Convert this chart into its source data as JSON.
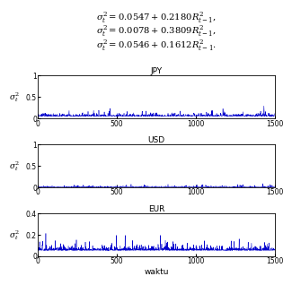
{
  "subplot_titles": [
    "JPY",
    "USD",
    "EUR"
  ],
  "ylabel": "$\\sigma_t^2$",
  "xlabel": "waktu",
  "n_points": 1500,
  "xlim": [
    0,
    1500
  ],
  "ylim_jpy": [
    0,
    1.0
  ],
  "ylim_usd": [
    0,
    1.0
  ],
  "ylim_eur": [
    0,
    0.4
  ],
  "yticks_jpy": [
    0,
    0.5,
    1
  ],
  "yticks_usd": [
    0,
    0.5,
    1
  ],
  "yticks_eur": [
    0,
    0.2,
    0.4
  ],
  "xticks": [
    0,
    500,
    1000,
    1500
  ],
  "line_color": "#0000cc",
  "bg_color": "#ffffff",
  "arch_a_jpy": 0.0547,
  "arch_b_jpy": 0.218,
  "arch_a_usd": 0.0078,
  "arch_b_usd": 0.3809,
  "arch_a_eur": 0.0546,
  "arch_b_eur": 0.1612,
  "eq1": "$\\sigma_t^2 = 0.0547 + 0.2180R_{t-1}^2,$",
  "eq2": "$\\sigma_t^2 = 0.0078 + 0.3809R_{t-1}^2,$",
  "eq3": "$\\sigma_t^2 = 0.0546 + 0.1612R_{t-1}^2.$"
}
